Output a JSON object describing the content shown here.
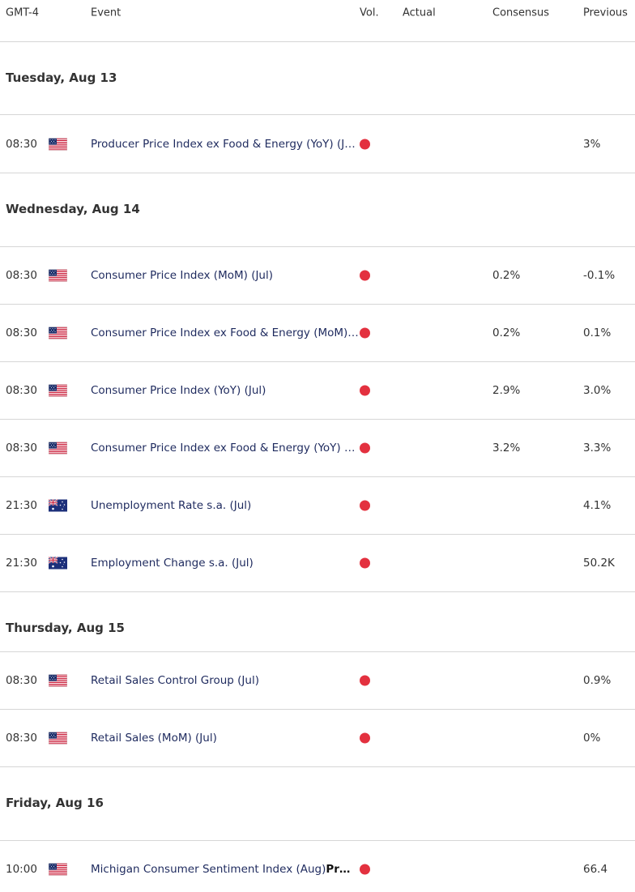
{
  "header": {
    "columns": [
      "GMT-4",
      "Event",
      "Vol.",
      "Actual",
      "Consensus",
      "Previous"
    ]
  },
  "days": [
    {
      "date": "Tuesday, Aug 13",
      "events": [
        {
          "time": "08:30",
          "event": "Producer Price Index ex Food & Energy (YoY) (J…",
          "previous": "3%"
        }
      ]
    },
    {
      "date": "Wednesday, Aug 14",
      "events": [
        {
          "time": "08:30",
          "event": "Consumer Price Index (MoM) (Jul)",
          "consensus": "0.2%",
          "previous": "-0.1%"
        },
        {
          "time": "08:30",
          "event": "Consumer Price Index ex Food & Energy (MoM)…",
          "consensus": "0.2%",
          "previous": "0.1%"
        },
        {
          "time": "08:30",
          "event": "Consumer Price Index (YoY) (Jul)",
          "consensus": "2.9%",
          "previous": "3.0%"
        },
        {
          "time": "08:30",
          "event": "Consumer Price Index ex Food & Energy (YoY) …",
          "consensus": "3.2%",
          "previous": "3.3%"
        },
        {
          "time": "21:30",
          "event": "Unemployment Rate s.a. (Jul)",
          "previous": "4.1%"
        },
        {
          "time": "21:30",
          "event": "Employment Change s.a. (Jul)",
          "previous": "50.2K"
        }
      ]
    },
    {
      "date": "Thursday, Aug 15",
      "events": [
        {
          "time": "08:30",
          "event": "Retail Sales Control Group (Jul)",
          "previous": "0.9%"
        },
        {
          "time": "08:30",
          "event": "Retail Sales (MoM) (Jul)",
          "previous": "0%"
        }
      ]
    },
    {
      "date": "Friday, Aug 16",
      "events": [
        {
          "time": "10:00",
          "event": "Michigan Consumer Sentiment Index (Aug)",
          "event_suffix": "Pr…",
          "previous": "66.4"
        }
      ]
    }
  ]
}
